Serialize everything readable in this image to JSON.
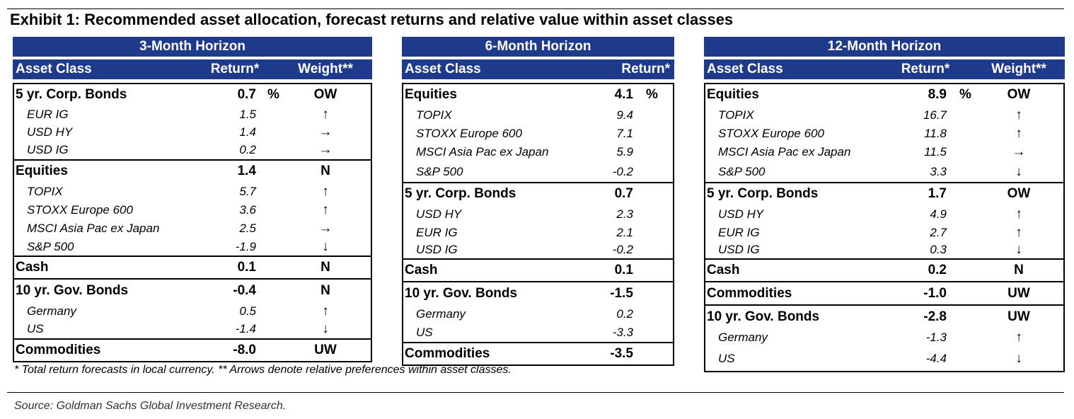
{
  "title": "Exhibit 1: Recommended asset allocation, forecast returns and relative value within asset classes",
  "headers": {
    "asset_class": "Asset Class",
    "return": "Return*",
    "weight": "Weight**",
    "percent": "%"
  },
  "panels": [
    {
      "horizon": "3-Month Horizon",
      "groups": [
        {
          "name": "5 yr. Corp. Bonds",
          "ret": "0.7",
          "weight": "OW",
          "rows": [
            {
              "name": "EUR IG",
              "ret": "1.5",
              "arrow": "↑"
            },
            {
              "name": "USD HY",
              "ret": "1.4",
              "arrow": "→"
            },
            {
              "name": "USD IG",
              "ret": "0.2",
              "arrow": "→"
            }
          ]
        },
        {
          "name": "Equities",
          "ret": "1.4",
          "weight": "N",
          "rows": [
            {
              "name": "TOPIX",
              "ret": "5.7",
              "arrow": "↑"
            },
            {
              "name": "STOXX Europe 600",
              "ret": "3.6",
              "arrow": "↑"
            },
            {
              "name": "MSCI Asia Pac ex Japan",
              "ret": "2.5",
              "arrow": "→"
            },
            {
              "name": "S&P 500",
              "ret": "-1.9",
              "arrow": "↓"
            }
          ]
        },
        {
          "name": "Cash",
          "ret": "0.1",
          "weight": "N",
          "rows": []
        },
        {
          "name": "10 yr. Gov. Bonds",
          "ret": "-0.4",
          "weight": "N",
          "rows": [
            {
              "name": "Germany",
              "ret": "0.5",
              "arrow": "↑"
            },
            {
              "name": "US",
              "ret": "-1.4",
              "arrow": "↓"
            }
          ]
        },
        {
          "name": "Commodities",
          "ret": "-8.0",
          "weight": "UW",
          "rows": []
        }
      ]
    },
    {
      "horizon": "6-Month Horizon",
      "groups": [
        {
          "name": "Equities",
          "ret": "4.1",
          "rows": [
            {
              "name": "TOPIX",
              "ret": "9.4"
            },
            {
              "name": "STOXX Europe 600",
              "ret": "7.1"
            },
            {
              "name": "MSCI Asia Pac ex Japan",
              "ret": "5.9"
            },
            {
              "name": "S&P 500",
              "ret": "-0.2"
            }
          ]
        },
        {
          "name": "5 yr. Corp. Bonds",
          "ret": "0.7",
          "rows": [
            {
              "name": "USD HY",
              "ret": "2.3"
            },
            {
              "name": "EUR IG",
              "ret": "2.1"
            },
            {
              "name": "USD IG",
              "ret": "-0.2"
            }
          ]
        },
        {
          "name": "Cash",
          "ret": "0.1",
          "rows": []
        },
        {
          "name": "10 yr. Gov. Bonds",
          "ret": "-1.5",
          "rows": [
            {
              "name": "Germany",
              "ret": "0.2"
            },
            {
              "name": "US",
              "ret": "-3.3"
            }
          ]
        },
        {
          "name": "Commodities",
          "ret": "-3.5",
          "rows": []
        }
      ]
    },
    {
      "horizon": "12-Month Horizon",
      "groups": [
        {
          "name": "Equities",
          "ret": "8.9",
          "weight": "OW",
          "rows": [
            {
              "name": "TOPIX",
              "ret": "16.7",
              "arrow": "↑"
            },
            {
              "name": "STOXX Europe 600",
              "ret": "11.8",
              "arrow": "↑"
            },
            {
              "name": "MSCI Asia Pac ex Japan",
              "ret": "11.5",
              "arrow": "→"
            },
            {
              "name": "S&P 500",
              "ret": "3.3",
              "arrow": "↓"
            }
          ]
        },
        {
          "name": "5 yr. Corp. Bonds",
          "ret": "1.7",
          "weight": "OW",
          "rows": [
            {
              "name": "USD HY",
              "ret": "4.9",
              "arrow": "↑"
            },
            {
              "name": "EUR IG",
              "ret": "2.7",
              "arrow": "↑"
            },
            {
              "name": "USD IG",
              "ret": "0.3",
              "arrow": "↓"
            }
          ]
        },
        {
          "name": "Cash",
          "ret": "0.2",
          "weight": "N",
          "rows": []
        },
        {
          "name": "Commodities",
          "ret": "-1.0",
          "weight": "UW",
          "rows": []
        },
        {
          "name": "10 yr. Gov. Bonds",
          "ret": "-2.8",
          "weight": "UW",
          "rows": [
            {
              "name": "Germany",
              "ret": "-1.3",
              "arrow": "↑"
            },
            {
              "name": "US",
              "ret": "-4.4",
              "arrow": "↓"
            }
          ]
        }
      ]
    }
  ],
  "footnote": "* Total return forecasts in local currency. ** Arrows denote relative preferences within asset classes.",
  "source": "Source: Goldman Sachs Global Investment Research."
}
